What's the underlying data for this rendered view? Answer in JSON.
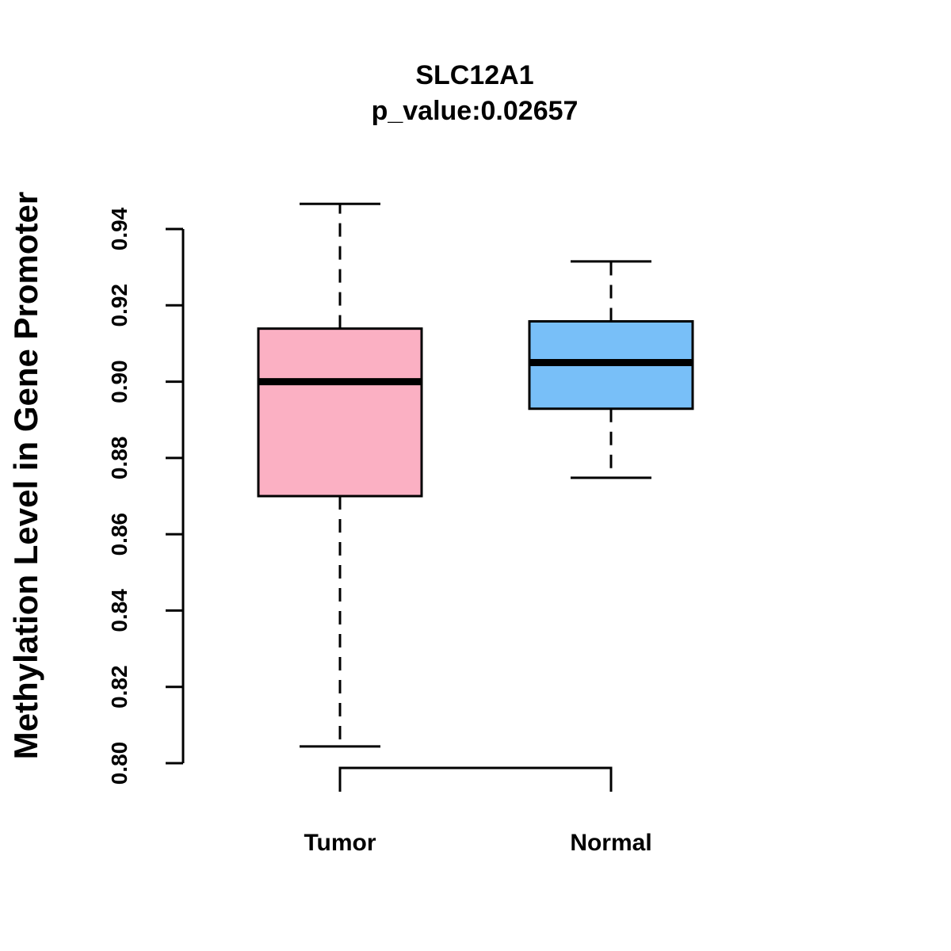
{
  "chart_data": {
    "type": "box",
    "title": "SLC12A1",
    "subtitle": "p_value:0.02657",
    "ylabel": "Methylation Level in Gene Promoter",
    "xlabel": "",
    "ylim": [
      0.8,
      0.94
    ],
    "yticks": [
      "0.80",
      "0.82",
      "0.84",
      "0.86",
      "0.88",
      "0.90",
      "0.92",
      "0.94"
    ],
    "ytick_values": [
      0.8,
      0.82,
      0.84,
      0.86,
      0.88,
      0.9,
      0.92,
      0.94
    ],
    "categories": [
      "Tumor",
      "Normal"
    ],
    "boxes": [
      {
        "name": "Tumor",
        "color": "#fbb0c3",
        "whisker_low": 0.8044,
        "q1": 0.87,
        "median": 0.9,
        "q3": 0.9139,
        "whisker_high": 0.9466
      },
      {
        "name": "Normal",
        "color": "#78bff8",
        "whisker_low": 0.8748,
        "q1": 0.8929,
        "median": 0.905,
        "q3": 0.9158,
        "whisker_high": 0.9315
      }
    ],
    "significance_bracket": {
      "from": "Tumor",
      "to": "Normal"
    },
    "grid": false
  }
}
